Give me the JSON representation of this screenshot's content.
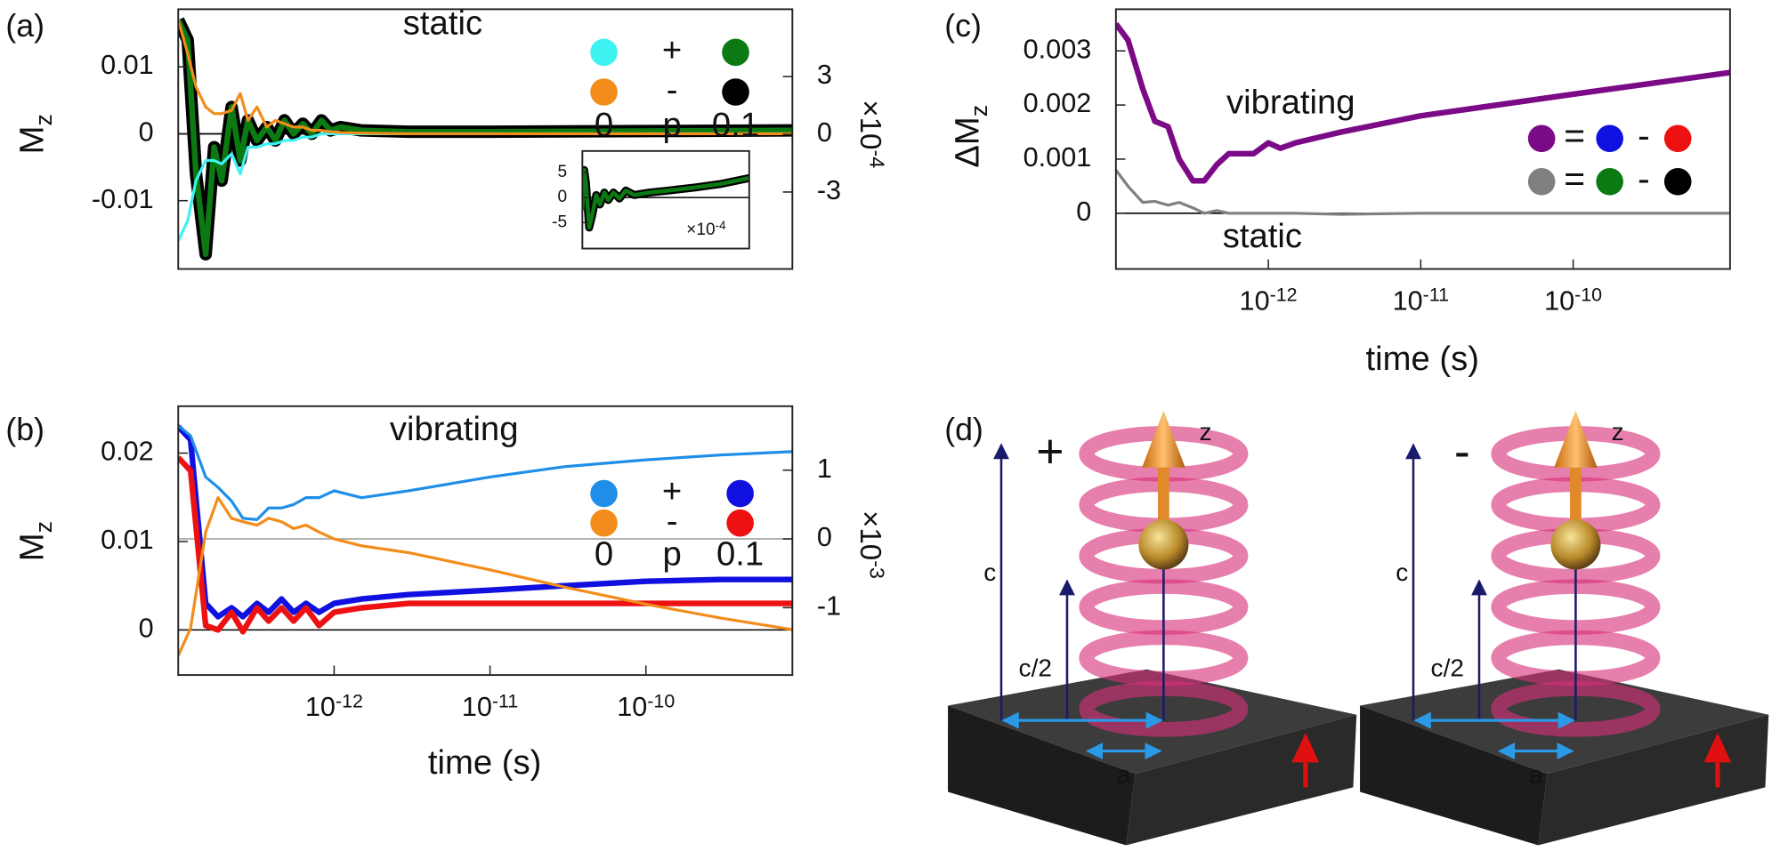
{
  "chart_data": [
    {
      "type": "line",
      "label": "(a)",
      "annotations": [
        "static"
      ],
      "ylabel": "Mz",
      "y2label": "×10-4",
      "xscale": "log",
      "xlim": [
        1e-13,
        8.7e-10
      ],
      "ylim": [
        -0.0202,
        0.0186
      ],
      "yticks": [
        -0.01,
        0,
        0.01
      ],
      "y2lim": [
        -7,
        6.5
      ],
      "y2ticks": [
        -3,
        0,
        3
      ],
      "x": [
        1e-13,
        1.15e-13,
        1.3e-13,
        1.5e-13,
        1.7e-13,
        1.9e-13,
        2.2e-13,
        2.5e-13,
        2.8e-13,
        3.2e-13,
        3.7e-13,
        4.2e-13,
        4.8e-13,
        5.5e-13,
        6.3e-13,
        7.2e-13,
        8.3e-13,
        9.5e-13,
        1.1e-12,
        1.5e-12,
        3e-12,
        1e-11,
        1e-10,
        8.7e-10
      ],
      "series": [
        {
          "color": "#3ef2f2",
          "line_width": 2.5,
          "values": [
            -0.016,
            -0.013,
            -0.007,
            -0.004,
            -0.004,
            -0.0045,
            -0.003,
            -0.006,
            -0.002,
            -0.002,
            -0.0015,
            -0.0015,
            -0.001,
            -0.001,
            -0.0005,
            -0.0005,
            0,
            0,
            0,
            0,
            0,
            0,
            0,
            0
          ]
        },
        {
          "color": "#f28c1a",
          "line_width": 2.5,
          "values": [
            0.017,
            0.012,
            0.007,
            0.004,
            0.003,
            0.003,
            0.0035,
            0.006,
            0.002,
            0.004,
            0.001,
            0.002,
            0.0015,
            0.001,
            0.001,
            0.0005,
            0.0005,
            0.0003,
            0.0002,
            0.0001,
            0,
            0,
            0,
            0
          ]
        },
        {
          "color": "#0c7a12",
          "line_width": 5,
          "values": [
            0.017,
            0.014,
            -0.006,
            -0.018,
            -0.002,
            -0.007,
            0.004,
            -0.004,
            0.002,
            -0.001,
            0.001,
            -0.001,
            0.002,
            0,
            0.0015,
            0,
            0.002,
            0.0005,
            0.001,
            0.0005,
            0.0003,
            0.0003,
            0.0004,
            0.0005
          ]
        },
        {
          "color": "#000000",
          "line_width": 11,
          "values": [
            0.017,
            0.014,
            -0.006,
            -0.018,
            -0.002,
            -0.007,
            0.004,
            -0.004,
            0.002,
            -0.001,
            0.001,
            -0.001,
            0.002,
            0,
            0.0015,
            0,
            0.002,
            0.0005,
            0.001,
            0.0005,
            0.0003,
            0.0003,
            0.0004,
            0.0005
          ]
        }
      ],
      "legend": {
        "rows": [
          "+",
          "-"
        ],
        "columns": [
          "0",
          "0.1"
        ],
        "title": "p"
      },
      "inset": {
        "type": "line",
        "xscale": "log",
        "xlim": [
          1e-11,
          8.7e-10
        ],
        "ylim": [
          -10.2,
          9.3
        ],
        "yticks": [
          -5,
          0,
          5
        ],
        "multiplier": "×10-4",
        "x": [
          1e-11,
          1.05e-11,
          1.1e-11,
          1.2e-11,
          1.3e-11,
          1.45e-11,
          1.6e-11,
          1.8e-11,
          2e-11,
          2.3e-11,
          2.7e-11,
          3.2e-11,
          4e-11,
          6e-11,
          1e-10,
          2e-10,
          4e-10,
          8.7e-10
        ],
        "series": [
          {
            "color": "#0c7a12",
            "edge_color": "#000000",
            "line_width": 3.5,
            "values": [
              -2.5,
              5.5,
              3,
              -6,
              -3.6,
              0.5,
              -1.4,
              1,
              -0.5,
              1,
              -0.2,
              1.4,
              0.5,
              1,
              1.4,
              2,
              2.7,
              3.9
            ]
          }
        ]
      }
    },
    {
      "type": "line",
      "label": "(b)",
      "annotations": [
        "vibrating"
      ],
      "ylabel": "Mz",
      "y2label": "×10-3",
      "xlabel": "time (s)",
      "xscale": "log",
      "xlim": [
        1e-13,
        8.7e-10
      ],
      "xticks": [
        {
          "value": 1e-12,
          "label": "10-12"
        },
        {
          "value": 1e-11,
          "label": "10-11"
        },
        {
          "value": 1e-10,
          "label": "10-10"
        }
      ],
      "ylim": [
        -0.0051,
        0.0253
      ],
      "yticks": [
        0,
        0.01,
        0.02
      ],
      "y2lim": [
        -1.98,
        1.93
      ],
      "y2ticks": [
        -1,
        0,
        1
      ],
      "x": [
        1e-13,
        1.2e-13,
        1.5e-13,
        1.8e-13,
        2.2e-13,
        2.6e-13,
        3.2e-13,
        3.8e-13,
        4.6e-13,
        5.5e-13,
        6.6e-13,
        8e-13,
        1e-12,
        1.5e-12,
        3e-12,
        1e-11,
        3e-11,
        1e-10,
        3e-10,
        8.7e-10
      ],
      "series": [
        {
          "color": "#1e8ee8",
          "line_width": 2.5,
          "axis": "y2",
          "values": [
            1.65,
            1.5,
            0.9,
            0.75,
            0.55,
            0.3,
            0.28,
            0.45,
            0.45,
            0.5,
            0.6,
            0.6,
            0.7,
            0.6,
            0.7,
            0.9,
            1.05,
            1.15,
            1.22,
            1.27
          ]
        },
        {
          "color": "#f28c1a",
          "line_width": 2.5,
          "axis": "y2",
          "values": [
            -1.7,
            -1.3,
            0.1,
            0.6,
            0.3,
            0.25,
            0.2,
            0.3,
            0.25,
            0.15,
            0.2,
            0.1,
            0,
            -0.1,
            -0.2,
            -0.45,
            -0.7,
            -0.95,
            -1.15,
            -1.32
          ]
        },
        {
          "color": "#1010e0",
          "line_width": 5,
          "values": [
            0.023,
            0.0215,
            0.003,
            0.0015,
            0.0025,
            0.0015,
            0.003,
            0.002,
            0.0035,
            0.002,
            0.003,
            0.002,
            0.003,
            0.0035,
            0.004,
            0.0045,
            0.005,
            0.0055,
            0.0057,
            0.0057
          ]
        },
        {
          "color": "#ee1111",
          "line_width": 5,
          "values": [
            0.0195,
            0.018,
            0.0005,
            0,
            0.002,
            -0.0002,
            0.0025,
            0.001,
            0.0025,
            0.001,
            0.0025,
            0.0005,
            0.002,
            0.0025,
            0.003,
            0.003,
            0.003,
            0.003,
            0.003,
            0.003
          ]
        }
      ],
      "legend": {
        "rows": [
          "+",
          "-"
        ],
        "columns": [
          "0",
          "0.1"
        ],
        "title": "p"
      }
    },
    {
      "type": "line",
      "label": "(c)",
      "annotations": [
        "vibrating",
        "static"
      ],
      "ylabel": "ΔMz",
      "xlabel": "time (s)",
      "xscale": "log",
      "xlim": [
        1e-13,
        1.07e-09
      ],
      "xticks": [
        {
          "value": 1e-12,
          "label": "10-12"
        },
        {
          "value": 1e-11,
          "label": "10-11"
        },
        {
          "value": 1e-10,
          "label": "10-10"
        }
      ],
      "ylim": [
        -0.00103,
        0.00377
      ],
      "yticks": [
        0,
        0.001,
        0.002,
        0.003
      ],
      "x": [
        1e-13,
        1.2e-13,
        1.5e-13,
        1.8e-13,
        2.2e-13,
        2.6e-13,
        3.2e-13,
        3.8e-13,
        4.6e-13,
        5.5e-13,
        6.6e-13,
        8e-13,
        1e-12,
        1.2e-12,
        1.5e-12,
        3e-12,
        1e-11,
        1e-10,
        1.07e-09
      ],
      "series": [
        {
          "color": "#7b0a86",
          "line_width": 5,
          "values": [
            0.0035,
            0.0032,
            0.0023,
            0.0017,
            0.0016,
            0.001,
            0.0006,
            0.0006,
            0.0009,
            0.0011,
            0.0011,
            0.0011,
            0.0013,
            0.0012,
            0.0013,
            0.0015,
            0.0018,
            0.0022,
            0.0026
          ]
        },
        {
          "color": "#808080",
          "line_width": 2.5,
          "values": [
            0.0008,
            0.0005,
            0.0002,
            0.00022,
            0.00015,
            0.0002,
            0.0001,
            0,
            5e-05,
            0,
            0,
            0,
            0,
            0,
            0,
            -2e-05,
            0,
            0,
            0
          ]
        }
      ],
      "legend": [
        {
          "colors": [
            "#7b0a86",
            "#1010e0",
            "#ee1111"
          ],
          "equals": "=",
          "minus": "-"
        },
        {
          "colors": [
            "#808080",
            "#0c7a12",
            "#000000"
          ],
          "equals": "=",
          "minus": "-"
        }
      ]
    }
  ],
  "diagram": {
    "label": "(d)",
    "panels": [
      {
        "sign": "+",
        "z": "z",
        "c": "c",
        "half_c": "c/2",
        "a": "a"
      },
      {
        "sign": "-",
        "z": "z",
        "c": "c",
        "half_c": "c/2",
        "a": "a"
      }
    ]
  }
}
